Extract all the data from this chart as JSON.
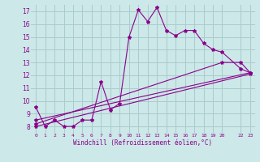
{
  "xlabel": "Windchill (Refroidissement éolien,°C)",
  "bg_color": "#cce8e8",
  "grid_color": "#aacccc",
  "line_color": "#8b008b",
  "line1_x": [
    0,
    1,
    2,
    3,
    4,
    5,
    6,
    7,
    8,
    9,
    10,
    11,
    12,
    13,
    14,
    15,
    16,
    17,
    18,
    19,
    20,
    22,
    23
  ],
  "line1_y": [
    9.5,
    8.0,
    8.5,
    8.0,
    8.0,
    8.5,
    8.5,
    11.5,
    9.3,
    9.8,
    15.0,
    17.1,
    16.2,
    17.3,
    15.5,
    15.1,
    15.5,
    15.5,
    14.5,
    14.0,
    13.8,
    12.5,
    12.2
  ],
  "line2_x": [
    0,
    23
  ],
  "line2_y": [
    8.5,
    12.2
  ],
  "line3_x": [
    0,
    20,
    22,
    23
  ],
  "line3_y": [
    8.2,
    13.0,
    13.0,
    12.2
  ],
  "line4_x": [
    0,
    23
  ],
  "line4_y": [
    8.0,
    12.1
  ],
  "ylim": [
    7.5,
    17.5
  ],
  "xlim": [
    -0.5,
    23.5
  ],
  "yticks": [
    8,
    9,
    10,
    11,
    12,
    13,
    14,
    15,
    16,
    17
  ],
  "xticks": [
    0,
    1,
    2,
    3,
    4,
    5,
    6,
    7,
    8,
    9,
    10,
    11,
    12,
    13,
    14,
    15,
    16,
    17,
    18,
    19,
    20,
    22,
    23
  ]
}
